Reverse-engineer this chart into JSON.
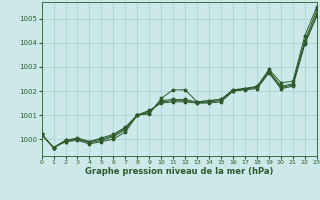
{
  "title": "Graphe pression niveau de la mer (hPa)",
  "xlim": [
    0,
    23
  ],
  "ylim": [
    999.3,
    1005.7
  ],
  "yticks": [
    1000,
    1001,
    1002,
    1003,
    1004,
    1005
  ],
  "xticks": [
    0,
    1,
    2,
    3,
    4,
    5,
    6,
    7,
    8,
    9,
    10,
    11,
    12,
    13,
    14,
    15,
    16,
    17,
    18,
    19,
    20,
    21,
    22,
    23
  ],
  "background_color": "#cce8e8",
  "grid_color": "#aad4d4",
  "line_color": "#2d5a2d",
  "series": [
    [
      1000.2,
      999.65,
      999.9,
      999.95,
      999.8,
      999.9,
      1000.0,
      1000.3,
      1001.0,
      1001.05,
      1001.7,
      1002.05,
      1002.05,
      1001.55,
      1001.6,
      1001.65,
      1002.05,
      1002.1,
      1002.15,
      1002.9,
      1002.35,
      1002.4,
      1004.3,
      1005.5
    ],
    [
      1000.2,
      999.65,
      999.9,
      1000.0,
      999.85,
      999.95,
      1000.1,
      1000.4,
      1001.0,
      1001.1,
      1001.6,
      1001.65,
      1001.65,
      1001.55,
      1001.6,
      1001.65,
      1002.05,
      1002.1,
      1002.2,
      1002.85,
      1002.2,
      1002.3,
      1004.1,
      1005.35
    ],
    [
      1000.2,
      999.65,
      999.95,
      1000.0,
      999.9,
      1000.0,
      1000.15,
      1000.45,
      1001.0,
      1001.15,
      1001.55,
      1001.6,
      1001.6,
      1001.5,
      1001.55,
      1001.6,
      1002.0,
      1002.1,
      1002.15,
      1002.8,
      1002.15,
      1002.25,
      1004.0,
      1005.2
    ],
    [
      1000.2,
      999.65,
      999.95,
      1000.05,
      999.9,
      1000.05,
      1000.2,
      1000.5,
      1001.0,
      1001.2,
      1001.5,
      1001.55,
      1001.55,
      1001.5,
      1001.5,
      1001.55,
      1002.0,
      1002.05,
      1002.1,
      1002.75,
      1002.1,
      1002.2,
      1003.95,
      1005.1
    ]
  ]
}
